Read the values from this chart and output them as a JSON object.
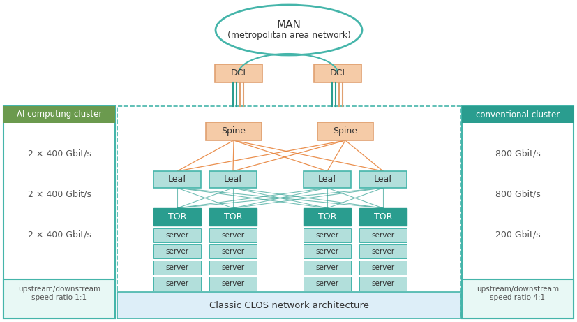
{
  "title_line1": "MAN",
  "title_line2": "(metropolitan area network)",
  "left_panel_title": "AI computing cluster",
  "right_panel_title": "conventional cluster",
  "left_speeds": [
    "2 × 400 Gbit/s",
    "2 × 400 Gbit/s",
    "2 × 400 Gbit/s"
  ],
  "right_speeds": [
    "800 Gbit/s",
    "800 Gbit/s",
    "200 Gbit/s"
  ],
  "left_footer": "upstream/downstream\nspeed ratio 1:1",
  "right_footer": "upstream/downstream\nspeed ratio 4:1",
  "center_footer": "Classic CLOS network architecture",
  "color_teal_dark": "#2a9d8f",
  "color_teal_mid": "#45b5aa",
  "color_teal_light": "#b2dfdb",
  "color_green_header": "#6b9a4e",
  "color_teal_header": "#2a9d8f",
  "color_peach": "#f5cba7",
  "color_peach_border": "#e0a070",
  "color_orange_line": "#e8843c",
  "color_teal_line": "#2a9d8f",
  "color_light_blue_footer": "#ddeef8",
  "text_color_dark": "#333333",
  "text_color_speed": "#555555",
  "text_color_footer": "#555555"
}
